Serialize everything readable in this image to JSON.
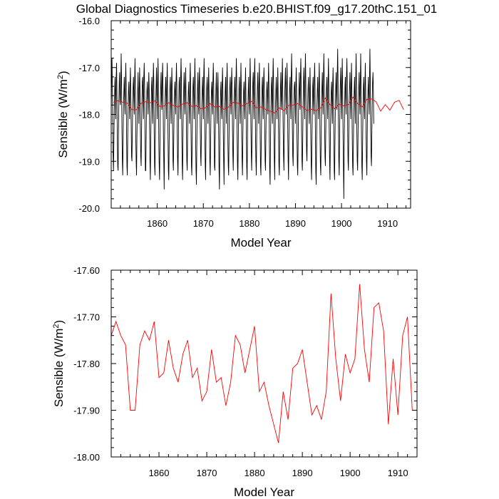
{
  "title": "Global Diagnostics Timeseries b.e20.BHIST.f09_g17.20thC.151_01",
  "colors": {
    "monthly": "#000000",
    "annual": "#ff0000"
  },
  "chart_data": [
    {
      "id": "top",
      "type": "line",
      "xlabel": "Model Year",
      "ylabel_prefix": "Sensible (W/m",
      "ylabel_sup": "2",
      "ylabel_suffix": ")",
      "xlim": [
        1850,
        1915
      ],
      "ylim": [
        -20.0,
        -16.0
      ],
      "xticks": [
        1860,
        1870,
        1880,
        1890,
        1900,
        1910
      ],
      "xtick_labels": [
        "1860",
        "1870",
        "1880",
        "1890",
        "1900",
        "1910"
      ],
      "yticks": [
        -20.0,
        -19.0,
        -18.0,
        -17.0,
        -16.0
      ],
      "ytick_labels": [
        "-20.0",
        "-19.0",
        "-18.0",
        "-17.0",
        "-16.0"
      ],
      "series": [
        {
          "kind": "monthly",
          "color": "#000000",
          "x_start": 1850.0,
          "x_step": 0.0833333,
          "values": [
            -17.9,
            -17.3,
            -16.8,
            -17.4,
            -18.2,
            -18.9,
            -19.2,
            -18.6,
            -17.9,
            -17.5,
            -17.2,
            -17.6,
            -18.1,
            -17.2,
            -16.9,
            -17.6,
            -18.6,
            -19.1,
            -19.2,
            -18.4,
            -17.7,
            -17.3,
            -17.1,
            -17.7,
            -17.8,
            -17.3,
            -16.7,
            -17.3,
            -18.3,
            -19.0,
            -19.3,
            -18.6,
            -17.8,
            -17.5,
            -17.2,
            -17.6,
            -18.0,
            -17.4,
            -16.9,
            -17.4,
            -18.4,
            -19.1,
            -19.3,
            -18.5,
            -17.9,
            -17.5,
            -17.3,
            -17.7,
            -18.1,
            -17.4,
            -17.0,
            -17.5,
            -18.2,
            -18.9,
            -19.0,
            -18.4,
            -17.8,
            -17.4,
            -17.2,
            -17.6,
            -18.0,
            -17.3,
            -16.8,
            -17.4,
            -18.5,
            -19.0,
            -19.3,
            -18.5,
            -17.9,
            -17.5,
            -17.1,
            -17.6,
            -18.2,
            -17.5,
            -17.0,
            -17.5,
            -18.3,
            -18.9,
            -19.1,
            -18.4,
            -17.7,
            -17.3,
            -17.2,
            -17.7,
            -18.1,
            -17.2,
            -16.9,
            -17.4,
            -18.4,
            -19.2,
            -19.2,
            -18.6,
            -17.8,
            -17.5,
            -17.3,
            -17.6,
            -18.0,
            -17.5,
            -17.1,
            -17.5,
            -18.3,
            -19.0,
            -19.4,
            -18.6,
            -17.9,
            -17.4,
            -17.2,
            -17.7,
            -18.2,
            -17.4,
            -16.9,
            -17.3,
            -18.4,
            -19.1,
            -19.3,
            -18.4,
            -17.8,
            -17.4,
            -17.0,
            -17.6,
            -18.1,
            -17.3,
            -16.8,
            -17.5,
            -18.6,
            -19.1,
            -19.4,
            -18.7,
            -17.8,
            -17.4,
            -17.1,
            -17.7,
            -17.9,
            -17.2,
            -16.9,
            -17.5,
            -18.4,
            -19.0,
            -19.6,
            -18.5,
            -17.8,
            -17.5,
            -17.2,
            -17.6,
            -18.1,
            -17.3,
            -16.9,
            -17.6,
            -18.5,
            -19.2,
            -19.4,
            -18.6,
            -17.9,
            -17.4,
            -17.2,
            -17.7,
            -18.2,
            -17.4,
            -17.0,
            -17.5,
            -18.3,
            -19.0,
            -19.2,
            -18.5,
            -17.8,
            -17.5,
            -17.3,
            -17.6,
            -18.0,
            -17.3,
            -16.9,
            -17.4,
            -18.4,
            -19.0,
            -19.3,
            -18.6,
            -17.7,
            -17.3,
            -17.2,
            -17.7,
            -18.1,
            -17.2,
            -16.8,
            -17.3,
            -18.5,
            -19.1,
            -19.4,
            -18.4,
            -17.8,
            -17.4,
            -17.1,
            -17.6,
            -18.0,
            -17.4,
            -17.0,
            -17.6,
            -18.3,
            -19.0,
            -19.2,
            -18.5,
            -17.9,
            -17.5,
            -17.3,
            -17.7,
            -18.2,
            -17.3,
            -16.9,
            -17.5,
            -18.4,
            -19.1,
            -19.3,
            -18.6,
            -17.8,
            -17.4,
            -17.2,
            -17.6,
            -18.1,
            -17.4,
            -16.8,
            -17.4,
            -18.6,
            -19.2,
            -19.5,
            -18.7,
            -17.9,
            -17.4,
            -17.1,
            -17.7,
            -18.0,
            -17.3,
            -17.0,
            -17.5,
            -18.3,
            -18.9,
            -19.1,
            -18.4,
            -17.8,
            -17.5,
            -17.2,
            -17.6,
            -18.1,
            -17.2,
            -16.8,
            -17.4,
            -18.5,
            -19.1,
            -19.4,
            -18.5,
            -17.7,
            -17.4,
            -17.2,
            -17.7,
            -18.2,
            -17.4,
            -17.0,
            -17.6,
            -18.4,
            -19.0,
            -19.3,
            -18.6,
            -17.9,
            -17.5,
            -17.3,
            -17.6,
            -18.0,
            -17.3,
            -16.9,
            -17.4,
            -18.3,
            -19.1,
            -19.2,
            -18.5,
            -17.8,
            -17.4,
            -17.1,
            -17.7,
            -18.2,
            -17.5,
            -17.1,
            -17.6,
            -18.5,
            -19.2,
            -19.6,
            -18.7,
            -18.0,
            -17.5,
            -17.3,
            -17.8,
            -18.1,
            -17.4,
            -17.0,
            -17.5,
            -18.4,
            -19.0,
            -19.5,
            -18.6,
            -17.9,
            -17.5,
            -17.2,
            -17.7,
            -18.2,
            -17.3,
            -16.9,
            -17.5,
            -18.6,
            -19.1,
            -19.3,
            -18.5,
            -17.8,
            -17.4,
            -17.2,
            -17.6,
            -18.0,
            -17.4,
            -17.0,
            -17.4,
            -18.3,
            -18.9,
            -19.2,
            -18.4,
            -17.8,
            -17.5,
            -17.2,
            -17.6,
            -18.1,
            -17.3,
            -16.8,
            -17.3,
            -18.4,
            -19.1,
            -19.4,
            -18.6,
            -17.9,
            -17.4,
            -17.2,
            -17.7,
            -18.2,
            -17.4,
            -16.9,
            -17.5,
            -18.5,
            -19.0,
            -19.3,
            -18.5,
            -17.8,
            -17.5,
            -17.3,
            -17.7,
            -18.1,
            -17.5,
            -17.0,
            -17.6,
            -18.4,
            -19.1,
            -19.4,
            -18.6,
            -17.9,
            -17.5,
            -17.2,
            -17.7,
            -18.0,
            -17.3,
            -16.8,
            -17.4,
            -18.3,
            -18.9,
            -19.2,
            -18.4,
            -17.7,
            -17.3,
            -17.1,
            -17.6,
            -18.1,
            -17.2,
            -16.8,
            -17.4,
            -18.5,
            -19.0,
            -19.3,
            -18.5,
            -17.8,
            -17.4,
            -17.1,
            -17.6,
            -18.2,
            -17.4,
            -16.9,
            -17.5,
            -18.4,
            -19.1,
            -19.3,
            -18.6,
            -17.9,
            -17.4,
            -17.2,
            -17.7,
            -18.1,
            -17.3,
            -17.0,
            -17.5,
            -18.3,
            -19.0,
            -19.2,
            -18.5,
            -17.8,
            -17.5,
            -17.3,
            -17.6,
            -18.0,
            -17.4,
            -16.9,
            -17.4,
            -18.6,
            -19.2,
            -19.5,
            -18.6,
            -17.9,
            -17.4,
            -17.2,
            -17.7,
            -18.2,
            -17.3,
            -16.8,
            -17.3,
            -18.4,
            -19.0,
            -19.4,
            -18.5,
            -17.8,
            -17.5,
            -17.2,
            -17.6,
            -18.1,
            -17.5,
            -17.0,
            -17.6,
            -18.5,
            -19.1,
            -19.3,
            -18.6,
            -17.9,
            -17.4,
            -17.1,
            -17.7,
            -17.9,
            -17.3,
            -16.8,
            -17.5,
            -18.3,
            -18.9,
            -19.2,
            -18.4,
            -17.6,
            -17.3,
            -17.0,
            -17.6,
            -18.0,
            -17.4,
            -16.9,
            -17.4,
            -18.4,
            -19.0,
            -19.4,
            -18.5,
            -17.8,
            -17.4,
            -17.2,
            -17.7,
            -18.1,
            -17.2,
            -16.7,
            -17.3,
            -18.3,
            -18.9,
            -19.1,
            -18.4,
            -17.7,
            -17.4,
            -17.3,
            -17.7,
            -18.2,
            -17.4,
            -17.0,
            -17.5,
            -18.5,
            -19.1,
            -19.3,
            -18.6,
            -17.9,
            -17.5,
            -17.1,
            -17.6,
            -17.9,
            -17.2,
            -16.8,
            -17.4,
            -18.4,
            -19.0,
            -19.2,
            -18.5,
            -17.8,
            -17.3,
            -17.0,
            -17.5,
            -18.1,
            -17.3,
            -16.7,
            -17.3,
            -18.2,
            -18.8,
            -19.0,
            -18.3,
            -17.7,
            -17.4,
            -17.2,
            -17.7,
            -18.2,
            -17.5,
            -17.0,
            -17.6,
            -18.5,
            -19.1,
            -19.4,
            -18.6,
            -17.9,
            -17.4,
            -17.2,
            -17.7,
            -18.0,
            -17.3,
            -16.9,
            -17.4,
            -18.4,
            -19.2,
            -19.5,
            -18.6,
            -17.8,
            -17.5,
            -17.2,
            -17.6,
            -18.1,
            -17.4,
            -16.9,
            -17.5,
            -18.5,
            -19.1,
            -19.3,
            -18.5,
            -17.8,
            -17.4,
            -17.1,
            -17.6,
            -18.0,
            -17.2,
            -16.7,
            -17.3,
            -18.3,
            -18.9,
            -19.1,
            -18.4,
            -17.7,
            -17.4,
            -17.2,
            -17.7,
            -18.1,
            -17.3,
            -16.8,
            -17.4,
            -18.4,
            -19.0,
            -19.4,
            -18.5,
            -17.9,
            -17.5,
            -17.3,
            -17.7,
            -18.2,
            -17.4,
            -17.0,
            -17.5,
            -18.5,
            -19.2,
            -19.4,
            -18.6,
            -17.8,
            -17.4,
            -17.1,
            -17.6,
            -17.9,
            -17.1,
            -16.6,
            -17.3,
            -18.3,
            -19.0,
            -19.3,
            -18.5,
            -17.7,
            -17.3,
            -17.0,
            -17.6,
            -18.1,
            -17.3,
            -16.8,
            -17.5,
            -18.4,
            -19.1,
            -19.8,
            -18.7,
            -17.9,
            -17.4,
            -17.2,
            -17.7,
            -18.0,
            -17.2,
            -16.8,
            -17.3,
            -18.3,
            -19.0,
            -19.2,
            -18.4,
            -17.7,
            -17.4,
            -17.1,
            -17.6,
            -18.1,
            -17.4,
            -16.9,
            -17.5,
            -18.5,
            -19.1,
            -19.3,
            -18.6,
            -17.9,
            -17.5,
            -17.2,
            -17.7,
            -18.2,
            -17.3,
            -16.7,
            -17.3,
            -18.4,
            -19.0,
            -19.2,
            -18.5,
            -17.8,
            -17.4,
            -17.1,
            -17.6,
            -18.0,
            -17.3,
            -16.7,
            -17.4,
            -18.5,
            -19.1,
            -19.4,
            -18.6,
            -17.9,
            -17.4,
            -17.2,
            -17.7,
            -18.1,
            -17.4,
            -16.9,
            -17.5,
            -18.4,
            -19.0,
            -19.3,
            -18.5,
            -17.8,
            -17.5,
            -17.2,
            -17.6,
            -18.0,
            -17.2,
            -16.6,
            -17.3,
            -18.3,
            -18.9,
            -19.1,
            -18.4,
            -17.7,
            -17.3,
            -17.1,
            -17.5,
            -18.2
          ]
        },
        {
          "kind": "annual",
          "color": "#ff0000",
          "x_start": 1850.5,
          "x_step": 1,
          "values": [
            -17.74,
            -17.71,
            -17.74,
            -17.76,
            -17.9,
            -17.9,
            -17.76,
            -17.73,
            -17.75,
            -17.71,
            -17.83,
            -17.82,
            -17.75,
            -17.81,
            -17.84,
            -17.78,
            -17.75,
            -17.83,
            -17.81,
            -17.88,
            -17.86,
            -17.77,
            -17.84,
            -17.83,
            -17.89,
            -17.84,
            -17.74,
            -17.76,
            -17.82,
            -17.77,
            -17.72,
            -17.86,
            -17.84,
            -17.89,
            -17.93,
            -17.97,
            -17.86,
            -17.92,
            -17.81,
            -17.8,
            -17.77,
            -17.84,
            -17.91,
            -17.89,
            -17.92,
            -17.86,
            -17.65,
            -17.79,
            -17.88,
            -17.78,
            -17.82,
            -17.79,
            -17.63,
            -17.77,
            -17.84,
            -17.68,
            -17.67,
            -17.73,
            -17.93,
            -17.79,
            -17.91,
            -17.74,
            -17.7,
            -17.9
          ]
        }
      ]
    },
    {
      "id": "bottom",
      "type": "line",
      "xlabel": "Model Year",
      "ylabel_prefix": "Sensible (W/m",
      "ylabel_sup": "2",
      "ylabel_suffix": ")",
      "xlim": [
        1850,
        1914
      ],
      "ylim": [
        -18.0,
        -17.6
      ],
      "xticks": [
        1860,
        1870,
        1880,
        1890,
        1900,
        1910
      ],
      "xtick_labels": [
        "1860",
        "1870",
        "1880",
        "1890",
        "1900",
        "1910"
      ],
      "yticks": [
        -18.0,
        -17.9,
        -17.8,
        -17.7,
        -17.6
      ],
      "ytick_labels": [
        "-18.00",
        "-17.90",
        "-17.80",
        "-17.70",
        "-17.60"
      ],
      "series": [
        {
          "kind": "annual",
          "color": "#ff0000",
          "x_start": 1850.0,
          "x_step": 1,
          "values": [
            -17.74,
            -17.71,
            -17.74,
            -17.76,
            -17.9,
            -17.9,
            -17.76,
            -17.73,
            -17.75,
            -17.71,
            -17.83,
            -17.82,
            -17.75,
            -17.81,
            -17.84,
            -17.78,
            -17.75,
            -17.83,
            -17.81,
            -17.88,
            -17.86,
            -17.77,
            -17.84,
            -17.83,
            -17.89,
            -17.84,
            -17.74,
            -17.76,
            -17.82,
            -17.77,
            -17.72,
            -17.86,
            -17.84,
            -17.89,
            -17.93,
            -17.97,
            -17.86,
            -17.92,
            -17.81,
            -17.8,
            -17.77,
            -17.84,
            -17.91,
            -17.89,
            -17.92,
            -17.86,
            -17.65,
            -17.79,
            -17.88,
            -17.78,
            -17.82,
            -17.79,
            -17.63,
            -17.77,
            -17.84,
            -17.68,
            -17.67,
            -17.73,
            -17.93,
            -17.79,
            -17.91,
            -17.74,
            -17.7,
            -17.9
          ]
        }
      ]
    }
  ]
}
